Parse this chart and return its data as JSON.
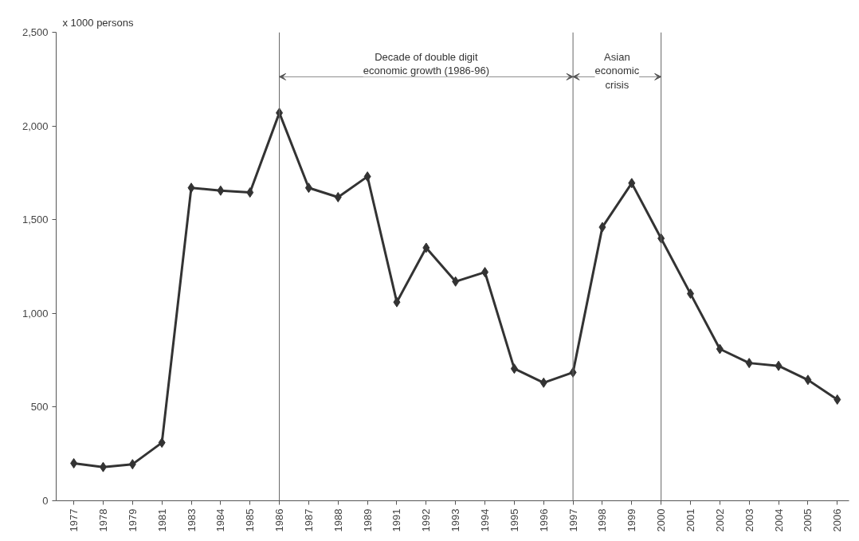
{
  "chart_data": {
    "type": "line",
    "ylabel": "x 1000 persons",
    "categories": [
      "1977",
      "1978",
      "1979",
      "1981",
      "1983",
      "1984",
      "1985",
      "1986",
      "1987",
      "1988",
      "1989",
      "1991",
      "1992",
      "1993",
      "1994",
      "1995",
      "1996",
      "1997",
      "1998",
      "1999",
      "2000",
      "2001",
      "2002",
      "2003",
      "2004",
      "2005",
      "2006"
    ],
    "series": [
      {
        "color": "#333333",
        "values": [
          200,
          180,
          195,
          310,
          1670,
          1655,
          1645,
          2070,
          1670,
          1620,
          1730,
          1060,
          1350,
          1170,
          1220,
          705,
          630,
          685,
          1460,
          1695,
          1400,
          1105,
          810,
          735,
          720,
          645,
          540
        ]
      }
    ],
    "ylim": [
      0,
      2500
    ],
    "yticks": [
      0,
      {
        "value": 500,
        "label": "500"
      },
      {
        "value": 1000,
        "label": "1,000"
      },
      {
        "value": 1500,
        "label": "1,500"
      },
      {
        "value": 2000,
        "label": "2,000"
      },
      {
        "value": 2500,
        "label": "2,500"
      }
    ],
    "ref_lines": [
      {
        "axis": "x",
        "value": "1986",
        "color": "#666666"
      },
      {
        "axis": "x",
        "value": "1997",
        "color": "#666666"
      },
      {
        "axis": "x",
        "value": "2000",
        "color": "#666666"
      }
    ],
    "annotations": [
      "Decade of double digit\neconomic growth (1986-96)",
      "Asian\neconomic\ncrisis"
    ],
    "marker": "diamond",
    "line_style": "solid",
    "grid": false
  }
}
